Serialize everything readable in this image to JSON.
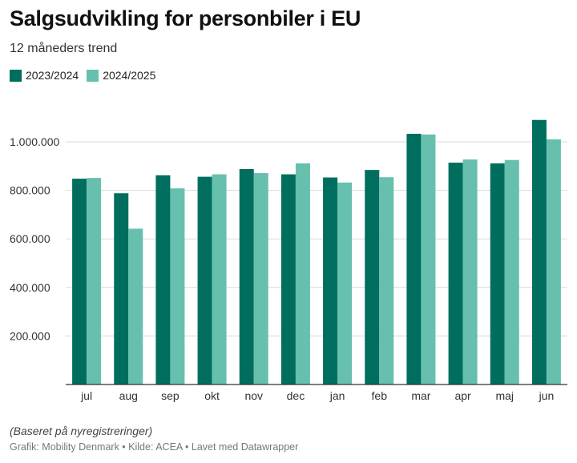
{
  "title": "Salgsudvikling for personbiler i EU",
  "subtitle": "12 måneders trend",
  "note": "(Baseret på nyregistreringer)",
  "footer": "Grafik: Mobility Denmark • Kilde: ACEA • Lavet med Datawrapper",
  "chart_data": {
    "type": "bar",
    "categories": [
      "jul",
      "aug",
      "sep",
      "okt",
      "nov",
      "dec",
      "jan",
      "feb",
      "mar",
      "apr",
      "maj",
      "jun"
    ],
    "series": [
      {
        "name": "2023/2024",
        "color": "#006e5f",
        "values": [
          848000,
          788000,
          862000,
          856000,
          888000,
          866000,
          853000,
          884000,
          1033000,
          914000,
          911000,
          1090000
        ]
      },
      {
        "name": "2024/2025",
        "color": "#67bfae",
        "values": [
          851000,
          642000,
          808000,
          866000,
          871000,
          911000,
          832000,
          854000,
          1030000,
          927000,
          925000,
          1010000
        ]
      }
    ],
    "y_ticks": [
      200000,
      400000,
      600000,
      800000,
      1000000
    ],
    "y_tick_labels": [
      "200.000",
      "400.000",
      "600.000",
      "800.000",
      "1.000.000"
    ],
    "ylim": [
      0,
      1100000
    ],
    "grid": true,
    "legend_position": "top-left"
  }
}
